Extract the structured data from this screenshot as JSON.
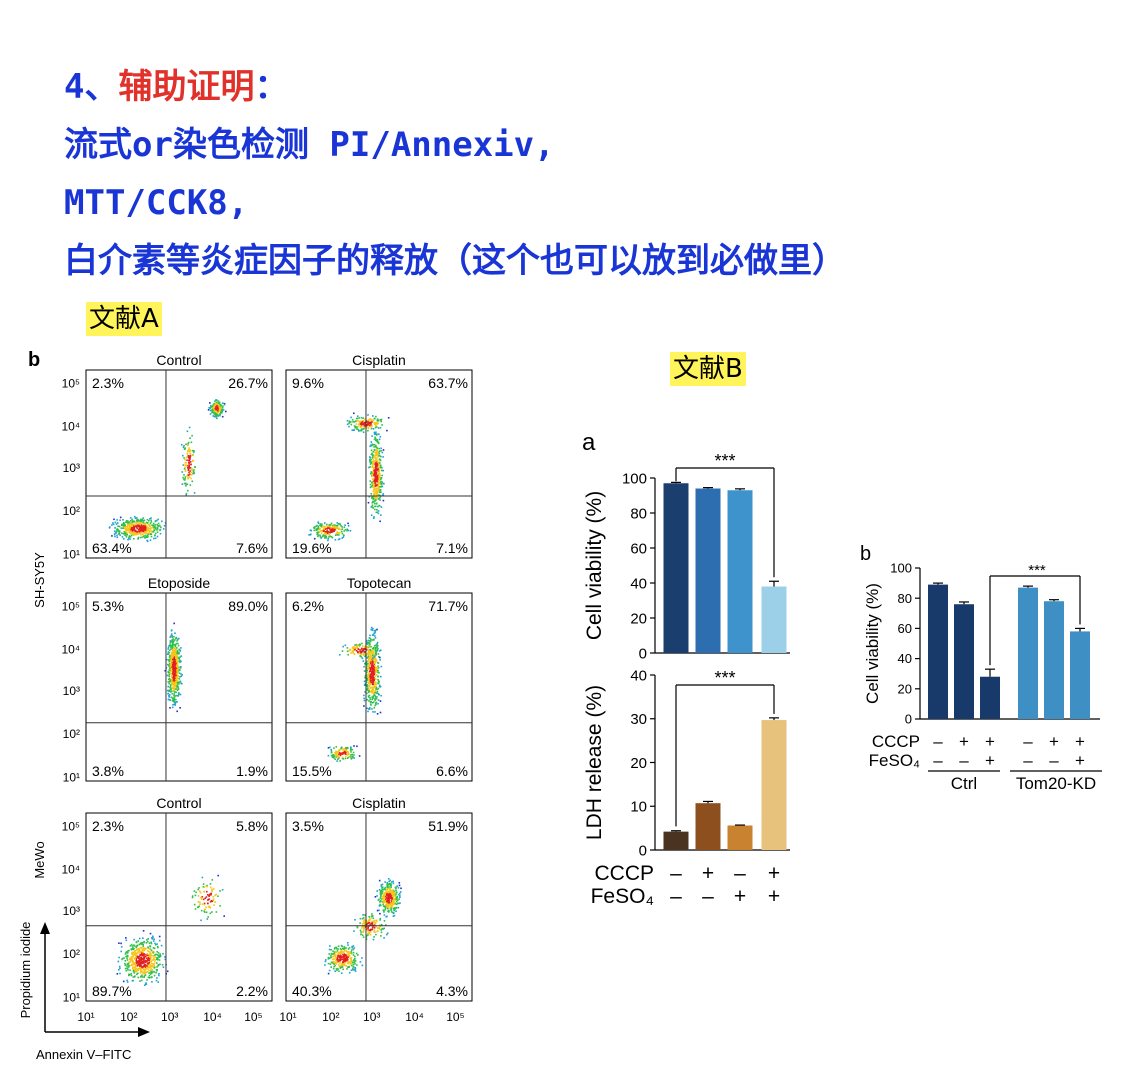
{
  "title": {
    "line1_prefix": "4、",
    "line1_red": "辅助证明",
    "line1_suffix": "：",
    "line2": "流式or染色检测 PI/Annexiv,",
    "line3": "MTT/CCK8,",
    "line4": "白介素等炎症因子的释放（这个也可以放到必做里）"
  },
  "ref_a_label": "文献A",
  "ref_b_label": "文献B",
  "flow": {
    "panel_letter": "b",
    "y_tick_labels": [
      "10⁵",
      "10⁴",
      "10³",
      "10²",
      "10¹"
    ],
    "x_tick_labels": [
      "10¹",
      "10²",
      "10³",
      "10⁴",
      "10⁵"
    ],
    "row_labels": [
      "SH-SY5Y",
      "MeWo"
    ],
    "y_axis_label": "Propidium iodide",
    "x_axis_label": "Annexin V–FITC",
    "plots": [
      {
        "title": "Control",
        "q": [
          "2.3%",
          "26.7%",
          "63.4%",
          "7.6%"
        ]
      },
      {
        "title": "Cisplatin",
        "q": [
          "9.6%",
          "63.7%",
          "19.6%",
          "7.1%"
        ]
      },
      {
        "title": "Etoposide",
        "q": [
          "5.3%",
          "89.0%",
          "3.8%",
          "1.9%"
        ]
      },
      {
        "title": "Topotecan",
        "q": [
          "6.2%",
          "71.7%",
          "15.5%",
          "6.6%"
        ]
      },
      {
        "title": "Control",
        "q": [
          "2.3%",
          "5.8%",
          "89.7%",
          "2.2%"
        ]
      },
      {
        "title": "Cisplatin",
        "q": [
          "3.5%",
          "51.9%",
          "40.3%",
          "4.3%"
        ]
      }
    ]
  },
  "chart_data": [
    {
      "type": "bar",
      "panel": "a",
      "ylabel": "Cell viability (%)",
      "ylim": [
        0,
        100
      ],
      "yticks": [
        0,
        20,
        40,
        60,
        80,
        100
      ],
      "values": [
        97,
        94,
        93,
        38
      ],
      "errors": [
        0.5,
        0.5,
        0.8,
        3
      ],
      "colors": [
        "#1a3f6e",
        "#2d6eb0",
        "#3f93cd",
        "#9ccfe8"
      ],
      "significance": "***"
    },
    {
      "type": "bar",
      "panel": "a",
      "ylabel": "LDH release (%)",
      "ylim": [
        0,
        40
      ],
      "yticks": [
        0,
        10,
        20,
        30,
        40
      ],
      "values": [
        4.2,
        10.7,
        5.6,
        29.7
      ],
      "errors": [
        0.2,
        0.4,
        0.1,
        0.5
      ],
      "colors": [
        "#4a3320",
        "#8e4f1f",
        "#c9822f",
        "#e7c27c"
      ],
      "significance": "***",
      "conditions": {
        "CCCP": [
          "–",
          "+",
          "–",
          "+"
        ],
        "FeSO₄": [
          "–",
          "–",
          "+",
          "+"
        ]
      }
    },
    {
      "type": "bar",
      "panel": "b",
      "ylabel": "Cell viability (%)",
      "ylim": [
        0,
        100
      ],
      "yticks": [
        0,
        20,
        40,
        60,
        80,
        100
      ],
      "values": [
        89,
        76,
        28,
        87,
        78,
        58
      ],
      "errors": [
        1,
        1.5,
        5,
        1,
        1,
        2
      ],
      "colors": [
        "#173a6b",
        "#173a6b",
        "#173a6b",
        "#3d8fc4",
        "#3d8fc4",
        "#3d8fc4"
      ],
      "significance": "***",
      "conditions": {
        "CCCP": [
          "–",
          "+",
          "+",
          "–",
          "+",
          "+"
        ],
        "FeSO₄": [
          "–",
          "–",
          "+",
          "–",
          "–",
          "+"
        ]
      },
      "groups": [
        "Ctrl",
        "Tom20-KD"
      ]
    }
  ]
}
